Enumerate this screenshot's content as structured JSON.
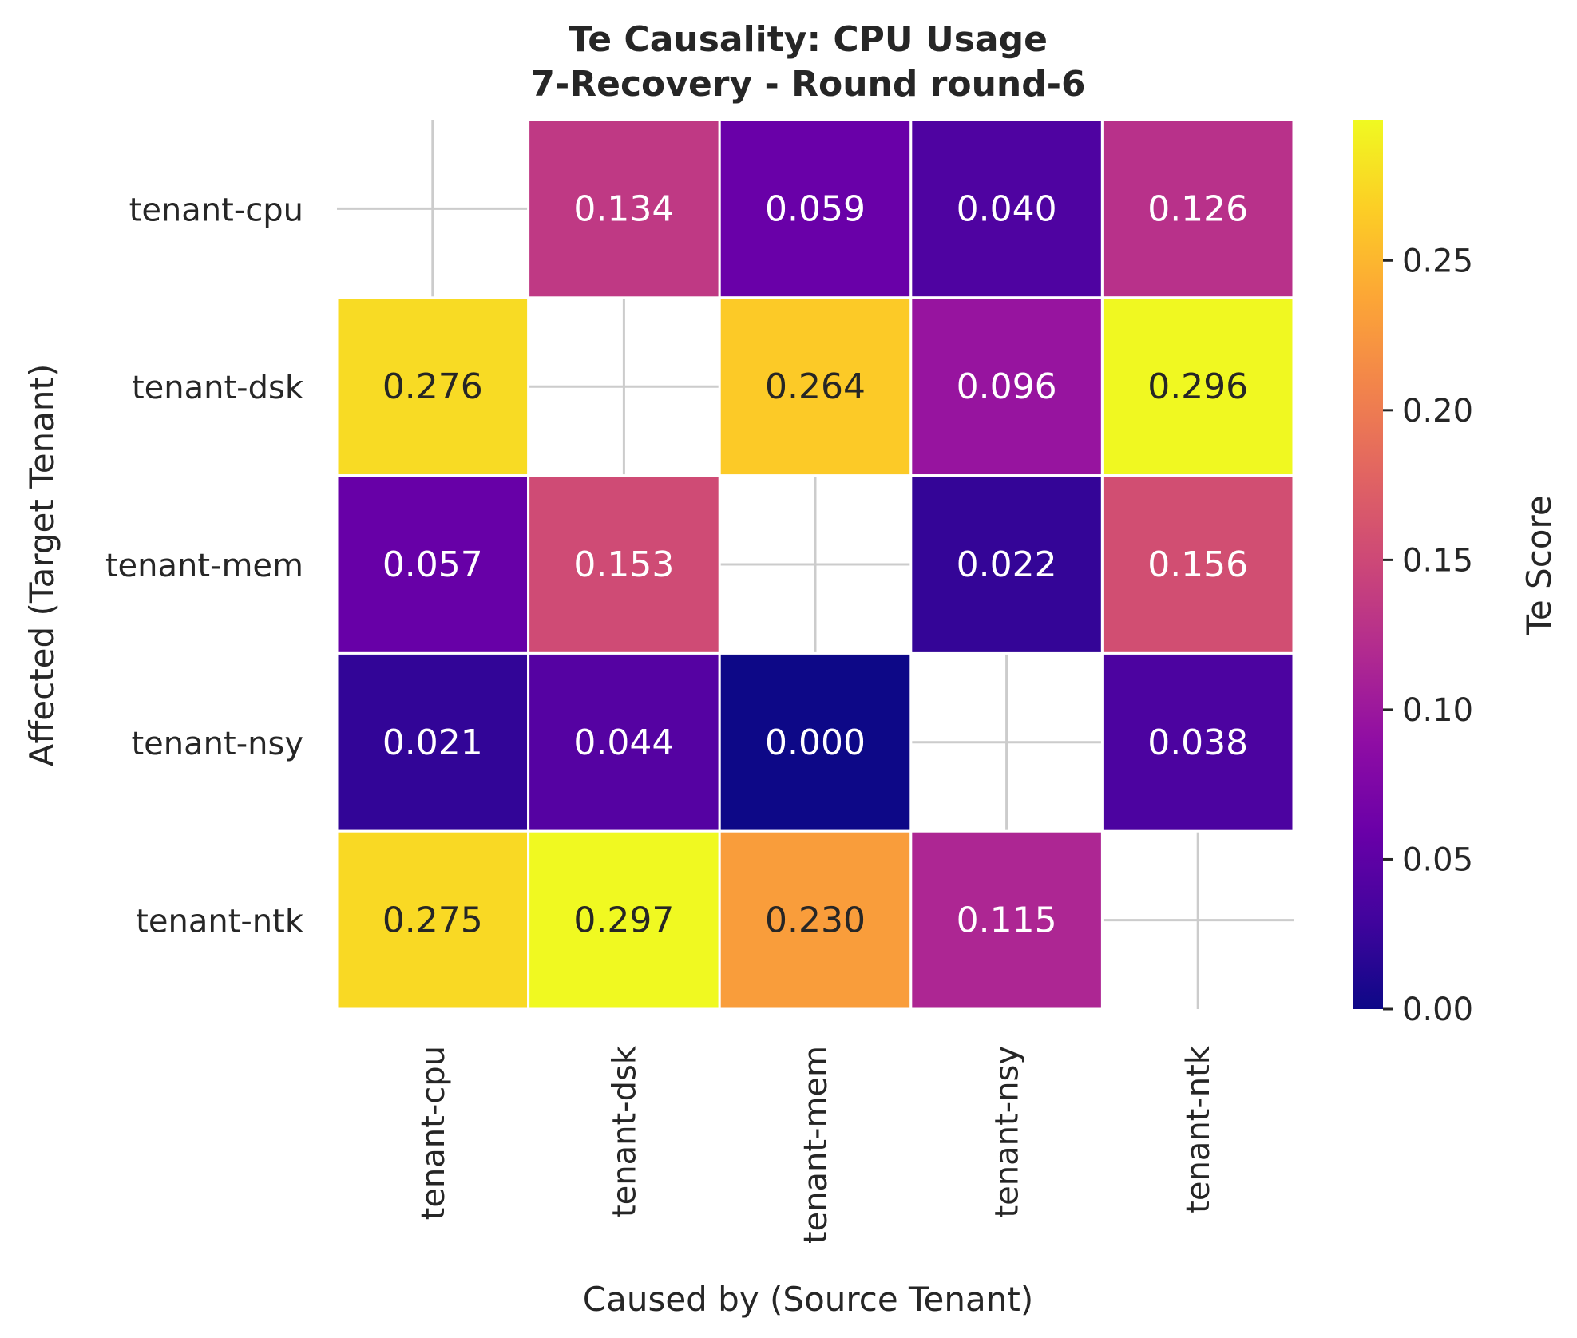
{
  "chart_data": {
    "type": "heatmap",
    "title_line1": "Te Causality: CPU Usage",
    "title_line2": "7-Recovery - Round round-6",
    "xlabel": "Caused by (Source Tenant)",
    "ylabel": "Affected (Target Tenant)",
    "x_categories": [
      "tenant-cpu",
      "tenant-dsk",
      "tenant-mem",
      "tenant-nsy",
      "tenant-ntk"
    ],
    "y_categories": [
      "tenant-cpu",
      "tenant-dsk",
      "tenant-mem",
      "tenant-nsy",
      "tenant-ntk"
    ],
    "values": [
      [
        null,
        0.134,
        0.059,
        0.04,
        0.126
      ],
      [
        0.276,
        null,
        0.264,
        0.096,
        0.296
      ],
      [
        0.057,
        0.153,
        null,
        0.022,
        0.156
      ],
      [
        0.021,
        0.044,
        0.0,
        null,
        0.038
      ],
      [
        0.275,
        0.297,
        0.23,
        0.115,
        null
      ]
    ],
    "cell_labels": [
      [
        "",
        "0.134",
        "0.059",
        "0.040",
        "0.126"
      ],
      [
        "0.276",
        "",
        "0.264",
        "0.096",
        "0.296"
      ],
      [
        "0.057",
        "0.153",
        "",
        "0.022",
        "0.156"
      ],
      [
        "0.021",
        "0.044",
        "0.000",
        "",
        "0.038"
      ],
      [
        "0.275",
        "0.297",
        "0.230",
        "0.115",
        ""
      ]
    ],
    "colormap": "plasma",
    "vmin": 0.0,
    "vmax": 0.297,
    "colorbar": {
      "label": "Te Score",
      "ticks": [
        0.0,
        0.05,
        0.1,
        0.15,
        0.2,
        0.25
      ],
      "tick_labels": [
        "0.00",
        "0.05",
        "0.10",
        "0.15",
        "0.20",
        "0.25"
      ]
    },
    "grid": true,
    "diagonal_masked": true
  }
}
